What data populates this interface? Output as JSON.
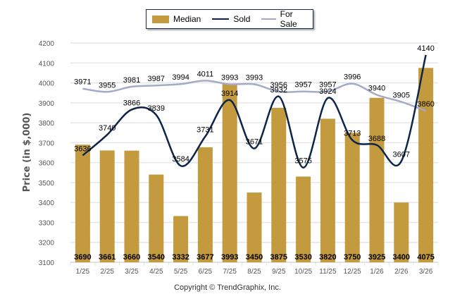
{
  "chart_data": {
    "type": "bar",
    "title": "",
    "xlabel": "",
    "ylabel": "Price (in $,000)",
    "ylim": [
      3100,
      4200
    ],
    "yticks": [
      3100,
      3200,
      3300,
      3400,
      3500,
      3600,
      3700,
      3800,
      3900,
      4000,
      4100,
      4200
    ],
    "grid": true,
    "legend_position": "top-center",
    "categories": [
      "1/25",
      "2/25",
      "3/25",
      "4/25",
      "5/25",
      "6/25",
      "7/25",
      "8/25",
      "9/25",
      "10/25",
      "11/25",
      "12/25",
      "1/26",
      "2/26",
      "3/26"
    ],
    "series": [
      {
        "name": "Median",
        "kind": "bar",
        "color": "#c39a3e",
        "values": [
          3690,
          3661,
          3660,
          3540,
          3332,
          3677,
          3993,
          3450,
          3875,
          3530,
          3820,
          3750,
          3925,
          3400,
          4075
        ]
      },
      {
        "name": "Sold",
        "kind": "line",
        "color": "#0d2548",
        "values": [
          3636,
          3740,
          3866,
          3839,
          3584,
          3731,
          3914,
          3671,
          3932,
          3575,
          3924,
          3713,
          3688,
          3607,
          4140
        ]
      },
      {
        "name": "For Sale",
        "kind": "line",
        "color": "#a3abc8",
        "values": [
          3971,
          3955,
          3981,
          3987,
          3994,
          4011,
          3993,
          3993,
          3956,
          3957,
          3957,
          3996,
          3940,
          3905,
          3860
        ]
      }
    ]
  },
  "legend": {
    "items": [
      {
        "label": "Median",
        "color": "#c39a3e"
      },
      {
        "label": "Sold",
        "color": "#0d2548"
      },
      {
        "label": "For Sale",
        "color": "#a3abc8"
      }
    ]
  },
  "footer": {
    "copyright": "Copyright © TrendGraphix, Inc."
  }
}
